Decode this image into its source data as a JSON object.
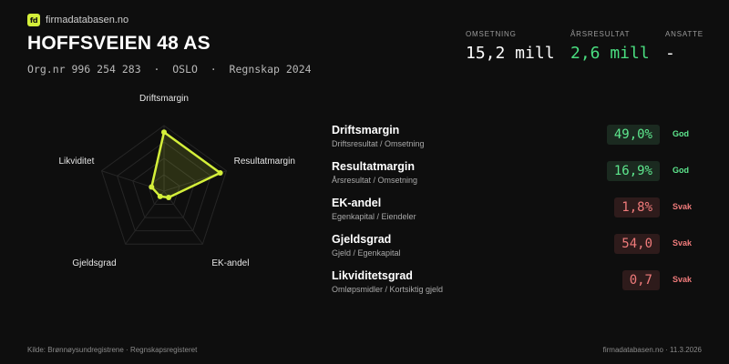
{
  "brand": {
    "logo_text": "fd",
    "name": "firmadatabasen.no"
  },
  "company": {
    "name": "HOFFSVEIEN 48 AS",
    "meta": "Org.nr 996 254 283  ·  OSLO  ·  Regnskap 2024"
  },
  "metrics": [
    {
      "label": "Omsetning",
      "value": "15,2 mill"
    },
    {
      "label": "Årsresultat",
      "value": "2,6 mill"
    },
    {
      "label": "Ansatte",
      "value": "-"
    }
  ],
  "radar": {
    "axes": [
      "Driftsmargin",
      "Resultatmargin",
      "EK-andel",
      "Gjeldsgrad",
      "Likviditet"
    ],
    "scores": [
      0.9,
      0.9,
      0.12,
      0.1,
      0.2
    ],
    "color": "#d4ef3a"
  },
  "kpis": [
    {
      "title": "Driftsmargin",
      "subtitle": "Driftsresultat / Omsetning",
      "value": "49,0%",
      "status": "God",
      "tone": "good"
    },
    {
      "title": "Resultatmargin",
      "subtitle": "Årsresultat / Omsetning",
      "value": "16,9%",
      "status": "God",
      "tone": "good"
    },
    {
      "title": "EK-andel",
      "subtitle": "Egenkapital / Eiendeler",
      "value": "1,8%",
      "status": "Svak",
      "tone": "weak"
    },
    {
      "title": "Gjeldsgrad",
      "subtitle": "Gjeld / Egenkapital",
      "value": "54,0",
      "status": "Svak",
      "tone": "weak"
    },
    {
      "title": "Likviditetsgrad",
      "subtitle": "Omløpsmidler / Kortsiktig gjeld",
      "value": "0,7",
      "status": "Svak",
      "tone": "weak"
    }
  ],
  "colors": {
    "accent": "#d4ef3a",
    "good": "#5ee88e",
    "weak": "#f07b7b",
    "background": "#0e0e0e"
  },
  "footer": {
    "source": "Kilde: Brønnøysundregistrene · Regnskapsregisteret",
    "site_date": "firmadatabasen.no · 11.3.2026"
  }
}
